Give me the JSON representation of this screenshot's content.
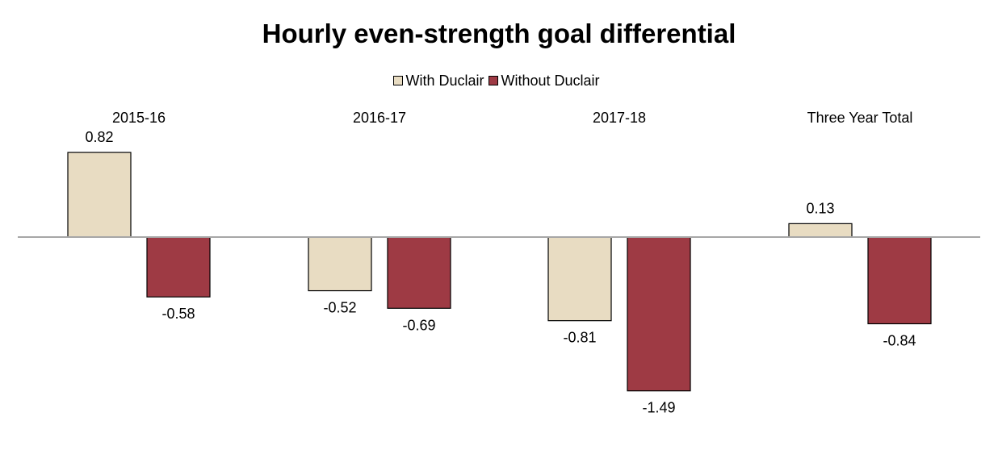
{
  "chart_data": {
    "type": "bar",
    "title": "Hourly even-strength goal differential",
    "categories": [
      "2015-16",
      "2016-17",
      "2017-18",
      "Three Year Total"
    ],
    "series": [
      {
        "name": "With Duclair",
        "color": "#e8dcc2",
        "values": [
          0.82,
          -0.52,
          -0.81,
          0.13
        ],
        "labels": [
          "0.82",
          "-0.52",
          "-0.81",
          "0.13"
        ]
      },
      {
        "name": "Without Duclair",
        "color": "#9e3a44",
        "values": [
          -0.58,
          -0.69,
          -1.49,
          -0.84
        ],
        "labels": [
          "-0.58",
          "-0.69",
          "-1.49",
          "-0.84"
        ]
      }
    ],
    "legend_position": "top-center",
    "category_label_position": "top",
    "grid": false,
    "zero_line": true
  }
}
